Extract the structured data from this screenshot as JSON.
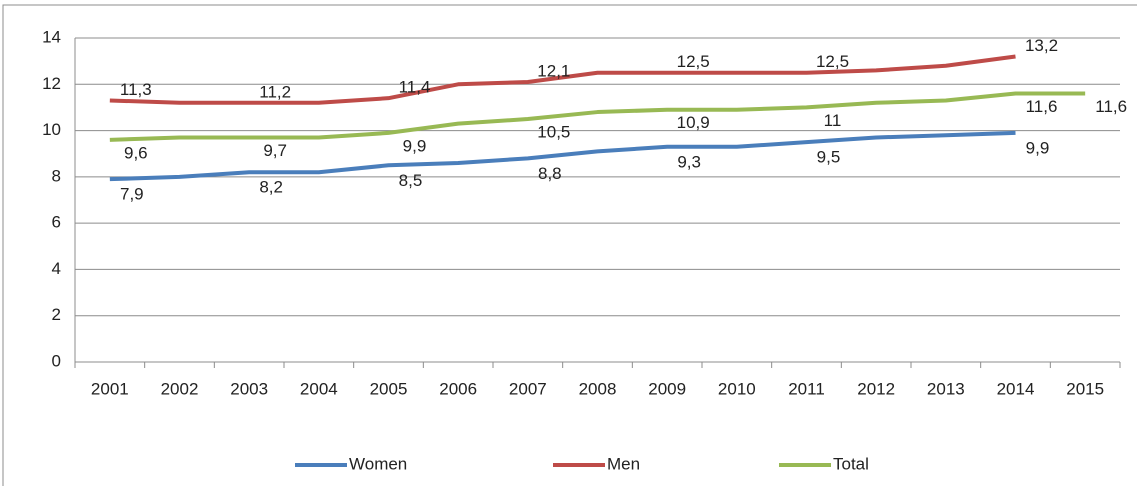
{
  "chart_data": {
    "type": "line",
    "categories": [
      "2001",
      "2002",
      "2003",
      "2004",
      "2005",
      "2006",
      "2007",
      "2008",
      "2009",
      "2010",
      "2011",
      "2012",
      "2013",
      "2014",
      "2015"
    ],
    "series": [
      {
        "name": "Women",
        "color": "#4a7ebb",
        "values": [
          7.9,
          8.0,
          8.2,
          8.2,
          8.5,
          8.6,
          8.8,
          9.1,
          9.3,
          9.3,
          9.5,
          9.7,
          9.8,
          9.9,
          null
        ],
        "value_labels": [
          "7,9",
          null,
          "8,2",
          null,
          "8,5",
          null,
          "8,8",
          null,
          "9,3",
          null,
          "9,5",
          null,
          null,
          "9,9",
          null
        ]
      },
      {
        "name": "Men",
        "color": "#be4b48",
        "values": [
          11.3,
          11.2,
          11.2,
          11.2,
          11.4,
          12.0,
          12.1,
          12.5,
          12.5,
          12.5,
          12.5,
          12.6,
          12.8,
          13.2,
          null
        ],
        "value_labels": [
          "11,3",
          null,
          "11,2",
          null,
          "11,4",
          null,
          "12,1",
          null,
          "12,5",
          null,
          "12,5",
          null,
          null,
          "13,2",
          null
        ]
      },
      {
        "name": "Total",
        "color": "#98b954",
        "values": [
          9.6,
          9.7,
          9.7,
          9.7,
          9.9,
          10.3,
          10.5,
          10.8,
          10.9,
          10.9,
          11.0,
          11.2,
          11.3,
          11.6,
          11.6
        ],
        "value_labels": [
          "9,6",
          null,
          "9,7",
          null,
          "9,9",
          null,
          "10,5",
          null,
          "10,9",
          null,
          "11",
          null,
          null,
          "11,6",
          "11,6"
        ]
      }
    ],
    "ylim": [
      0,
      14
    ],
    "yticks": [
      0,
      2,
      4,
      6,
      8,
      10,
      12,
      14
    ],
    "grid": true,
    "legend": "bottom"
  }
}
